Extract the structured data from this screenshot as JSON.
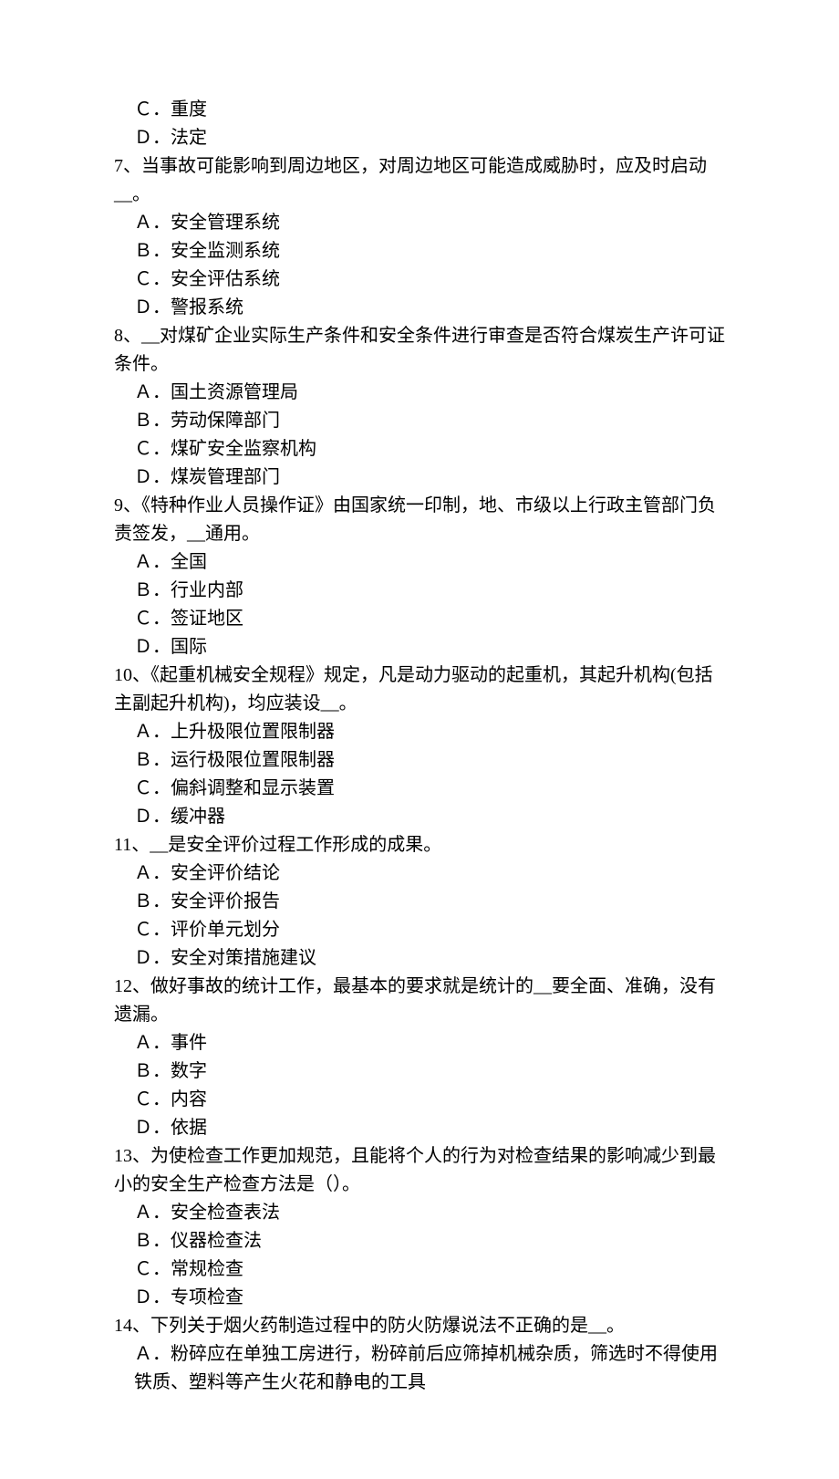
{
  "content": {
    "font_family": "SimSun",
    "font_size": 20,
    "text_color": "#000000",
    "background_color": "#ffffff",
    "option_indent": 22
  },
  "q6_partial": {
    "options": [
      "Ｃ．重度",
      "Ｄ．法定"
    ]
  },
  "q7": {
    "text": "7、当事故可能影响到周边地区，对周边地区可能造成威胁时，应及时启动__。",
    "options": [
      "Ａ．安全管理系统",
      "Ｂ．安全监测系统",
      "Ｃ．安全评估系统",
      "Ｄ．警报系统"
    ]
  },
  "q8": {
    "text": "8、__对煤矿企业实际生产条件和安全条件进行审查是否符合煤炭生产许可证条件。",
    "options": [
      "Ａ．国土资源管理局",
      "Ｂ．劳动保障部门",
      "Ｃ．煤矿安全监察机构",
      "Ｄ．煤炭管理部门"
    ]
  },
  "q9": {
    "text": "9、《特种作业人员操作证》由国家统一印制，地、市级以上行政主管部门负责签发，__通用。",
    "options": [
      "Ａ．全国",
      "Ｂ．行业内部",
      "Ｃ．签证地区",
      "Ｄ．国际"
    ]
  },
  "q10": {
    "text": "10、《起重机械安全规程》规定，凡是动力驱动的起重机，其起升机构(包括主副起升机构)，均应装设__。",
    "options": [
      "Ａ．上升极限位置限制器",
      "Ｂ．运行极限位置限制器",
      "Ｃ．偏斜调整和显示装置",
      "Ｄ．缓冲器"
    ]
  },
  "q11": {
    "text": "11、__是安全评价过程工作形成的成果。",
    "options": [
      "Ａ．安全评价结论",
      "Ｂ．安全评价报告",
      "Ｃ．评价单元划分",
      "Ｄ．安全对策措施建议"
    ]
  },
  "q12": {
    "text": "12、做好事故的统计工作，最基本的要求就是统计的__要全面、准确，没有遗漏。",
    "options": [
      "Ａ．事件",
      "Ｂ．数字",
      "Ｃ．内容",
      "Ｄ．依据"
    ]
  },
  "q13": {
    "text": "13、为使检查工作更加规范，且能将个人的行为对检查结果的影响减少到最小的安全生产检查方法是（）。",
    "options": [
      "Ａ．安全检查表法",
      "Ｂ．仪器检查法",
      "Ｃ．常规检查",
      "Ｄ．专项检查"
    ]
  },
  "q14": {
    "text": "14、下列关于烟火药制造过程中的防火防爆说法不正确的是__。",
    "options": [
      "Ａ．粉碎应在单独工房进行，粉碎前后应筛掉机械杂质，筛选时不得使用铁质、塑料等产生火花和静电的工具"
    ]
  }
}
